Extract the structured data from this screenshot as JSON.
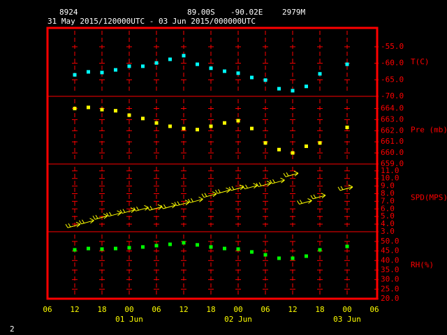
{
  "header": {
    "station": "8924",
    "lat": "89.00S",
    "lon": "-90.02E",
    "elev": "2979M",
    "period": "31 May 2015/120000UTC - 03 Jun 2015/000000UTC",
    "page": "2"
  },
  "chart_data": [
    {
      "type": "scatter",
      "y_label": "T(C)",
      "color": "#00ffff",
      "xlim": [
        0,
        72
      ],
      "ylim": [
        -70,
        -49.3
      ],
      "yticks": [
        {
          "value": -55,
          "label": "-55.0"
        },
        {
          "value": -60,
          "label": "-60.0"
        },
        {
          "value": -65,
          "label": "-65.0"
        },
        {
          "value": -70,
          "label": "-70.0"
        }
      ],
      "x": [
        6,
        9,
        12,
        15,
        18,
        21,
        24,
        27,
        30,
        33,
        36,
        39,
        42,
        45,
        48,
        51,
        54,
        57,
        60,
        63,
        66
      ],
      "values": [
        -63.5,
        -62.6,
        -62.8,
        -62,
        -60.9,
        -60.9,
        -59.9,
        -58.8,
        -57.7,
        -60.3,
        -61.5,
        -62.4,
        -63,
        -64.3,
        -65.1,
        -67.7,
        -68.3,
        -67,
        -63.2,
        null,
        -60.3
      ]
    },
    {
      "type": "scatter",
      "y_label": "Pre (mb)",
      "color": "#ffff00",
      "xlim": [
        0,
        72
      ],
      "ylim": [
        659,
        665.1
      ],
      "yticks": [
        {
          "value": 664,
          "label": "664.0"
        },
        {
          "value": 663,
          "label": "663.0"
        },
        {
          "value": 662,
          "label": "662.0"
        },
        {
          "value": 661,
          "label": "661.0"
        },
        {
          "value": 660,
          "label": "660.0"
        },
        {
          "value": 659,
          "label": "659.0"
        }
      ],
      "x": [
        6,
        9,
        12,
        15,
        18,
        21,
        24,
        27,
        30,
        33,
        36,
        39,
        42,
        45,
        48,
        51,
        54,
        57,
        60,
        63,
        66
      ],
      "values": [
        664.0,
        664.1,
        663.9,
        663.8,
        663.4,
        663.1,
        662.7,
        662.4,
        662.2,
        662.1,
        662.4,
        662.7,
        662.9,
        662.2,
        660.9,
        660.3,
        660.0,
        660.6,
        660.9,
        null,
        662.3
      ]
    },
    {
      "type": "wind",
      "y_label": "SPD(MPS)",
      "color": "#ffff00",
      "xlim": [
        0,
        72
      ],
      "ylim": [
        3,
        11.9
      ],
      "yticks": [
        {
          "value": 11,
          "label": "11.0"
        },
        {
          "value": 10,
          "label": "10.0"
        },
        {
          "value": 9,
          "label": "9.0"
        },
        {
          "value": 8,
          "label": "8.0"
        },
        {
          "value": 7,
          "label": "7.0"
        },
        {
          "value": 6,
          "label": "6.0"
        },
        {
          "value": 5,
          "label": "5.0"
        },
        {
          "value": 4,
          "label": "4.0"
        },
        {
          "value": 3,
          "label": "3.0"
        }
      ],
      "x": [
        6,
        9,
        12,
        15,
        18,
        21,
        24,
        27,
        30,
        33,
        36,
        39,
        42,
        45,
        48,
        51,
        54,
        57,
        60,
        63,
        66
      ],
      "values": [
        3.8,
        4.3,
        4.9,
        5.3,
        5.7,
        6.0,
        6.1,
        6.3,
        6.7,
        7.1,
        7.8,
        8.3,
        8.7,
        8.9,
        9.2,
        9.6,
        10.5,
        6.9,
        7.6,
        null,
        8.7
      ]
    },
    {
      "type": "scatter",
      "y_label": "RH(%)",
      "color": "#00ff00",
      "xlim": [
        0,
        72
      ],
      "ylim": [
        20,
        55.1
      ],
      "yticks": [
        {
          "value": 50,
          "label": "50.0"
        },
        {
          "value": 45,
          "label": "45.0"
        },
        {
          "value": 40,
          "label": "40.0"
        },
        {
          "value": 35,
          "label": "35.0"
        },
        {
          "value": 30,
          "label": "30.0"
        },
        {
          "value": 25,
          "label": "25.0"
        },
        {
          "value": 20,
          "label": "20.0"
        }
      ],
      "x": [
        6,
        9,
        12,
        15,
        18,
        21,
        24,
        27,
        30,
        33,
        36,
        39,
        42,
        45,
        48,
        51,
        54,
        57,
        60,
        63,
        66
      ],
      "values": [
        45.6,
        46.3,
        46,
        46.3,
        46.7,
        47.1,
        47.8,
        48.5,
        49.3,
        48.2,
        47.1,
        46.3,
        46,
        44.5,
        43,
        41.2,
        41.2,
        42.3,
        45.6,
        null,
        47.4
      ],
      "xticks": [
        {
          "value": 0,
          "label": "06"
        },
        {
          "value": 6,
          "label": "12"
        },
        {
          "value": 12,
          "label": "18"
        },
        {
          "value": 18,
          "label": "00"
        },
        {
          "value": 24,
          "label": "06"
        },
        {
          "value": 30,
          "label": "12"
        },
        {
          "value": 36,
          "label": "18"
        },
        {
          "value": 42,
          "label": "00"
        },
        {
          "value": 48,
          "label": "06"
        },
        {
          "value": 54,
          "label": "12"
        },
        {
          "value": 60,
          "label": "18"
        },
        {
          "value": 66,
          "label": "00"
        },
        {
          "value": 72,
          "label": "06"
        }
      ],
      "day_labels": [
        {
          "value": 18,
          "label": "01 Jun"
        },
        {
          "value": 42,
          "label": "02 Jun"
        },
        {
          "value": 66,
          "label": "03 Jun"
        }
      ]
    }
  ]
}
